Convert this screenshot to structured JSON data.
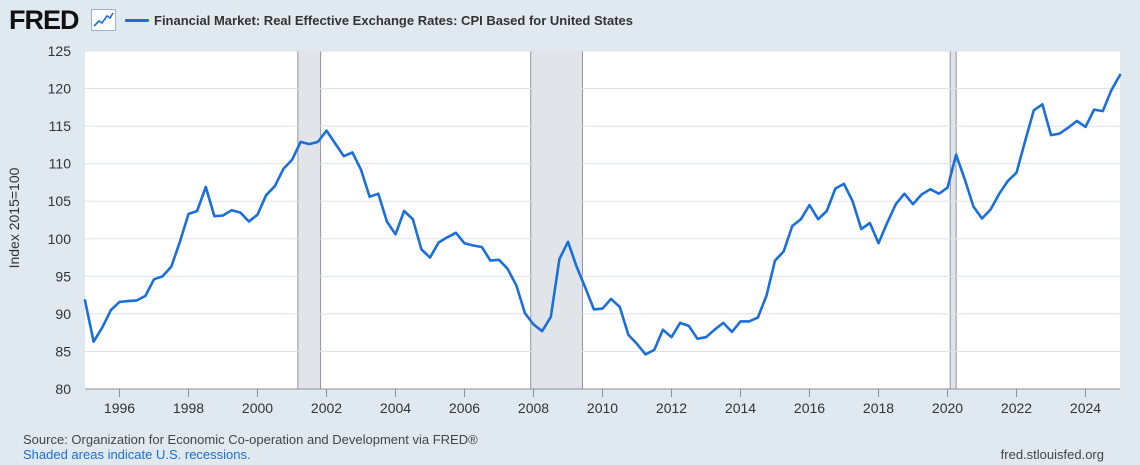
{
  "header": {
    "logo_text": "FRED",
    "logo_icon": "trend-line-icon",
    "legend_label": "Financial Market: Real Effective Exchange Rates: CPI Based for United States",
    "series_color": "#1a6fdb"
  },
  "footer": {
    "source": "Source: Organization for Economic Co-operation and Development via FRED®",
    "recession_note": "Shaded areas indicate U.S. recessions.",
    "credit": "fred.stlouisfed.org"
  },
  "chart_data": {
    "type": "line",
    "title": "",
    "xlabel": "",
    "ylabel": "Index 2015=100",
    "xlim": [
      1995.0,
      2025.0
    ],
    "ylim": [
      80,
      125
    ],
    "y_ticks": [
      80,
      85,
      90,
      95,
      100,
      105,
      110,
      115,
      120,
      125
    ],
    "x_ticks": [
      1996,
      1998,
      2000,
      2002,
      2004,
      2006,
      2008,
      2010,
      2012,
      2014,
      2016,
      2018,
      2020,
      2022,
      2024
    ],
    "grid": "horizontal",
    "recessions": [
      [
        2001.17,
        2001.83
      ],
      [
        2007.92,
        2009.42
      ],
      [
        2020.08,
        2020.25
      ]
    ],
    "series": [
      {
        "name": "Financial Market: Real Effective Exchange Rates: CPI Based for United States",
        "x": [
          1995.0,
          1995.25,
          1995.5,
          1995.75,
          1996.0,
          1996.25,
          1996.5,
          1996.75,
          1997.0,
          1997.25,
          1997.5,
          1997.75,
          1998.0,
          1998.25,
          1998.5,
          1998.75,
          1999.0,
          1999.25,
          1999.5,
          1999.75,
          2000.0,
          2000.25,
          2000.5,
          2000.75,
          2001.0,
          2001.25,
          2001.5,
          2001.75,
          2002.0,
          2002.25,
          2002.5,
          2002.75,
          2003.0,
          2003.25,
          2003.5,
          2003.75,
          2004.0,
          2004.25,
          2004.5,
          2004.75,
          2005.0,
          2005.25,
          2005.5,
          2005.75,
          2006.0,
          2006.25,
          2006.5,
          2006.75,
          2007.0,
          2007.25,
          2007.5,
          2007.75,
          2008.0,
          2008.25,
          2008.5,
          2008.75,
          2009.0,
          2009.25,
          2009.5,
          2009.75,
          2010.0,
          2010.25,
          2010.5,
          2010.75,
          2011.0,
          2011.25,
          2011.5,
          2011.75,
          2012.0,
          2012.25,
          2012.5,
          2012.75,
          2013.0,
          2013.25,
          2013.5,
          2013.75,
          2014.0,
          2014.25,
          2014.5,
          2014.75,
          2015.0,
          2015.25,
          2015.5,
          2015.75,
          2016.0,
          2016.25,
          2016.5,
          2016.75,
          2017.0,
          2017.25,
          2017.5,
          2017.75,
          2018.0,
          2018.25,
          2018.5,
          2018.75,
          2019.0,
          2019.25,
          2019.5,
          2019.75,
          2020.0,
          2020.25,
          2020.5,
          2020.75,
          2021.0,
          2021.25,
          2021.5,
          2021.75,
          2022.0,
          2022.25,
          2022.5,
          2022.75,
          2023.0,
          2023.25,
          2023.5,
          2023.75,
          2024.0,
          2024.25,
          2024.5,
          2024.75,
          2025.0
        ],
        "values": [
          91.8,
          86.3,
          88.2,
          90.5,
          91.6,
          91.7,
          91.8,
          92.4,
          94.6,
          95.0,
          96.3,
          99.6,
          103.3,
          103.7,
          106.9,
          103.0,
          103.1,
          103.8,
          103.5,
          102.3,
          103.2,
          105.8,
          107.0,
          109.3,
          110.5,
          112.9,
          112.6,
          112.9,
          114.4,
          112.7,
          111.0,
          111.5,
          109.2,
          105.6,
          106.0,
          102.3,
          100.6,
          103.7,
          102.6,
          98.6,
          97.5,
          99.5,
          100.2,
          100.8,
          99.4,
          99.1,
          98.9,
          97.1,
          97.2,
          96.0,
          93.8,
          90.1,
          88.6,
          87.7,
          89.6,
          97.3,
          99.6,
          96.3,
          93.5,
          90.6,
          90.7,
          92.0,
          90.9,
          87.2,
          86.0,
          84.6,
          85.2,
          87.9,
          86.9,
          88.8,
          88.4,
          86.7,
          86.9,
          87.9,
          88.8,
          87.6,
          89.0,
          89.0,
          89.5,
          92.4,
          97.1,
          98.3,
          101.7,
          102.6,
          104.5,
          102.6,
          103.7,
          106.7,
          107.3,
          105.0,
          101.3,
          102.1,
          99.4,
          102.1,
          104.6,
          106.0,
          104.6,
          105.9,
          106.6,
          106.0,
          106.8,
          111.2,
          107.9,
          104.3,
          102.7,
          103.9,
          106.0,
          107.7,
          108.8,
          113.0,
          117.1,
          117.9,
          113.8,
          114.0,
          114.8,
          115.7,
          114.9,
          117.2,
          117.0,
          119.8,
          121.8
        ]
      }
    ]
  }
}
